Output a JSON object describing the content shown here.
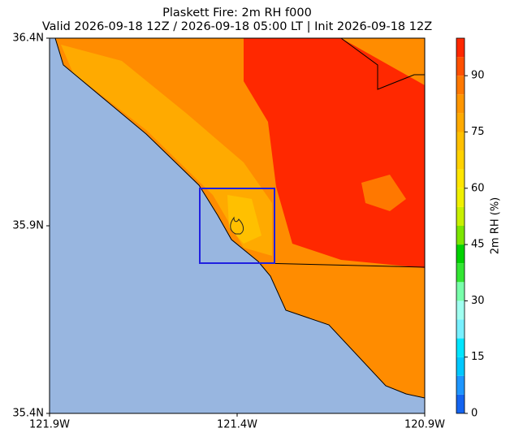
{
  "chart_data": {
    "type": "contour-map",
    "title": "Plaskett Fire: 2m RH f000",
    "subtitle": "Valid 2026-09-18 12Z / 2026-09-18 05:00 LT | Init 2026-09-18 12Z",
    "xlim": [
      -121.9,
      -120.9
    ],
    "ylim": [
      35.4,
      36.4
    ],
    "xticks": [
      {
        "value": -121.9,
        "label": "121.9W"
      },
      {
        "value": -121.4,
        "label": "121.4W"
      },
      {
        "value": -120.9,
        "label": "120.9W"
      }
    ],
    "yticks": [
      {
        "value": 35.4,
        "label": "35.4N"
      },
      {
        "value": 35.9,
        "label": "35.9N"
      },
      {
        "value": 36.4,
        "label": "36.4N"
      }
    ],
    "colorbar": {
      "label": "2m RH (%)",
      "lim": [
        0,
        100
      ],
      "ticks": [
        0,
        15,
        30,
        45,
        60,
        75,
        90
      ],
      "levels": [
        0,
        5,
        10,
        15,
        20,
        25,
        30,
        35,
        40,
        45,
        50,
        55,
        60,
        65,
        70,
        75,
        80,
        85,
        90,
        95,
        100
      ],
      "colors": [
        "#1464f0",
        "#1e96ff",
        "#00c8ff",
        "#00e6ff",
        "#78f0ff",
        "#a0fff0",
        "#78ffaa",
        "#32e632",
        "#00d200",
        "#7ce600",
        "#c8f000",
        "#f0f000",
        "#ffe600",
        "#ffd200",
        "#ffc000",
        "#ffaa00",
        "#ff9600",
        "#ff7800",
        "#ff5000",
        "#ff2800"
      ]
    }
  }
}
